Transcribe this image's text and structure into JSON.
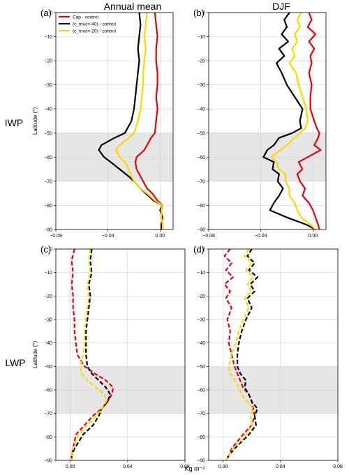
{
  "figure": {
    "column_titles": [
      "Annual mean",
      "DJF"
    ],
    "row_labels": [
      "IWP",
      "LWP"
    ],
    "shared_xlabel": "Kg m⁻²",
    "shared_ylabel": "Latitude (°)"
  },
  "colors": {
    "cap": "#e8000b",
    "c40": "#000000",
    "c20": "#ffd700",
    "shade": "#e6e6e6",
    "grid": "#d2d2d2"
  },
  "legend": [
    {
      "label": "Cap - control",
      "color": "#e8000b"
    },
    {
      "label": "(c_tnuc=-40) - control",
      "color": "#000000"
    },
    {
      "label": "(c_tnuc=-20) - control",
      "color": "#ffd700"
    }
  ],
  "chart_data": [
    {
      "panel": "(a)",
      "title": "Annual mean",
      "type": "line",
      "orientation": "y-latitude",
      "xlim": [
        -0.08,
        0.01
      ],
      "xticks": [
        -0.08,
        -0.04,
        0.0
      ],
      "xtick_labels": [
        "−0.08",
        "−0.04",
        "0.00"
      ],
      "ylim": [
        -90,
        0
      ],
      "yticks": [
        0,
        -10,
        -20,
        -30,
        -40,
        -50,
        -60,
        -70,
        -80,
        -90
      ],
      "ytick_labels": [
        "0",
        "−10",
        "−20",
        "−30",
        "−40",
        "−50",
        "−60",
        "−70",
        "−80",
        "−90"
      ],
      "shade_band": [
        -70,
        -50
      ],
      "line_style": "solid",
      "legend_loc": "upper left",
      "y": [
        0,
        -5,
        -10,
        -15,
        -20,
        -25,
        -30,
        -35,
        -40,
        -45,
        -50,
        -52,
        -55,
        -57,
        -60,
        -62,
        -65,
        -68,
        -70,
        -73,
        -75,
        -78,
        -80,
        -82,
        -85,
        -88,
        -90
      ],
      "series": [
        {
          "name": "Cap - control",
          "x": [
            -0.004,
            -0.003,
            -0.002,
            -0.003,
            -0.003,
            -0.002,
            -0.002,
            -0.003,
            -0.002,
            -0.003,
            -0.004,
            -0.007,
            -0.01,
            -0.012,
            -0.018,
            -0.019,
            -0.018,
            -0.015,
            -0.013,
            -0.01,
            -0.006,
            -0.002,
            0.002,
            0.001,
            0.001,
            0.002,
            0.002
          ]
        },
        {
          "name": "(c_tnuc=-40) - control",
          "x": [
            -0.016,
            -0.015,
            -0.016,
            -0.017,
            -0.016,
            -0.017,
            -0.018,
            -0.019,
            -0.02,
            -0.022,
            -0.027,
            -0.035,
            -0.045,
            -0.047,
            -0.043,
            -0.038,
            -0.031,
            -0.024,
            -0.02,
            -0.015,
            -0.011,
            -0.005,
            0.002,
            0.0,
            0.002,
            0.001,
            0.001
          ]
        },
        {
          "name": "(c_tnuc=-20) - control",
          "x": [
            -0.01,
            -0.011,
            -0.012,
            -0.011,
            -0.012,
            -0.013,
            -0.013,
            -0.014,
            -0.015,
            -0.017,
            -0.02,
            -0.024,
            -0.031,
            -0.034,
            -0.031,
            -0.027,
            -0.024,
            -0.022,
            -0.02,
            -0.015,
            -0.01,
            -0.004,
            0.002,
            0.001,
            0.001,
            0.002,
            0.002
          ]
        }
      ]
    },
    {
      "panel": "(b)",
      "title": "DJF",
      "type": "line",
      "orientation": "y-latitude",
      "xlim": [
        -0.08,
        0.01
      ],
      "xticks": [
        -0.08,
        -0.04,
        0.0
      ],
      "xtick_labels": [
        "−0.08",
        "−0.04",
        "0.00"
      ],
      "ylim": [
        -90,
        0
      ],
      "yticks": [
        0,
        -10,
        -20,
        -30,
        -40,
        -50,
        -60,
        -70,
        -80,
        -90
      ],
      "ytick_labels": [
        "0",
        "−10",
        "−20",
        "−30",
        "−40",
        "−50",
        "−60",
        "−70",
        "−80",
        "−90"
      ],
      "shade_band": [
        -70,
        -50
      ],
      "line_style": "solid",
      "y": [
        0,
        -3,
        -6,
        -9,
        -12,
        -15,
        -18,
        -21,
        -25,
        -30,
        -35,
        -40,
        -45,
        -48,
        -50,
        -52,
        -55,
        -57,
        -60,
        -62,
        -65,
        -67,
        -70,
        -73,
        -76,
        -79,
        -82,
        -85,
        -88,
        -90
      ],
      "series": [
        {
          "name": "Cap - control",
          "x": [
            -0.003,
            -0.001,
            -0.004,
            0.002,
            -0.003,
            0.001,
            -0.002,
            -0.001,
            -0.003,
            -0.001,
            -0.002,
            -0.002,
            0.001,
            0.003,
            0.005,
            0.004,
            0.001,
            0.006,
            -0.004,
            -0.011,
            -0.008,
            -0.012,
            -0.01,
            -0.006,
            -0.008,
            -0.003,
            0.0,
            0.002,
            0.004,
            0.005
          ]
        },
        {
          "name": "(c_tnuc=-40) - control",
          "x": [
            -0.018,
            -0.022,
            -0.02,
            -0.024,
            -0.019,
            -0.026,
            -0.022,
            -0.028,
            -0.024,
            -0.02,
            -0.014,
            -0.008,
            -0.01,
            -0.009,
            -0.016,
            -0.026,
            -0.03,
            -0.035,
            -0.038,
            -0.03,
            -0.031,
            -0.026,
            -0.027,
            -0.023,
            -0.026,
            -0.03,
            -0.033,
            -0.02,
            -0.005,
            0.002
          ]
        },
        {
          "name": "(c_tnuc=-20) - control",
          "x": [
            -0.009,
            -0.012,
            -0.01,
            -0.014,
            -0.012,
            -0.016,
            -0.014,
            -0.018,
            -0.013,
            -0.011,
            -0.008,
            -0.005,
            -0.004,
            -0.006,
            -0.01,
            -0.014,
            -0.02,
            -0.025,
            -0.032,
            -0.028,
            -0.026,
            -0.021,
            -0.021,
            -0.018,
            -0.018,
            -0.014,
            -0.012,
            -0.009,
            -0.002,
            0.002
          ]
        }
      ]
    },
    {
      "panel": "(c)",
      "type": "line",
      "orientation": "y-latitude",
      "xlim": [
        -0.01,
        0.08
      ],
      "xticks": [
        0.0,
        0.04,
        0.08
      ],
      "xtick_labels": [
        "0.00",
        "0.04",
        "0.08"
      ],
      "ylim": [
        -90,
        0
      ],
      "yticks": [
        0,
        -10,
        -20,
        -30,
        -40,
        -50,
        -60,
        -70,
        -80,
        -90
      ],
      "ytick_labels": [
        "0",
        "−10",
        "−20",
        "−30",
        "−40",
        "−50",
        "−60",
        "−70",
        "−80",
        "−90"
      ],
      "shade_band": [
        -70,
        -50
      ],
      "line_style": "dashed",
      "y": [
        0,
        -5,
        -10,
        -15,
        -20,
        -25,
        -30,
        -35,
        -40,
        -45,
        -50,
        -53,
        -56,
        -59,
        -62,
        -65,
        -68,
        -71,
        -75,
        -79,
        -82,
        -85,
        -88,
        -90
      ],
      "series": [
        {
          "name": "Cap - control",
          "x": [
            0.003,
            0.001,
            0.002,
            0.001,
            0.002,
            0.002,
            0.003,
            0.003,
            0.004,
            0.005,
            0.01,
            0.017,
            0.025,
            0.03,
            0.029,
            0.026,
            0.022,
            0.016,
            0.01,
            0.004,
            0.003,
            0.002,
            0.001,
            0.001
          ]
        },
        {
          "name": "(c_tnuc=-40) - control",
          "x": [
            0.015,
            0.014,
            0.015,
            0.013,
            0.014,
            0.013,
            0.012,
            0.011,
            0.011,
            0.011,
            0.012,
            0.015,
            0.02,
            0.025,
            0.028,
            0.026,
            0.022,
            0.02,
            0.016,
            0.009,
            0.006,
            0.003,
            0.001,
            0.001
          ]
        },
        {
          "name": "(c_tnuc=-20) - control",
          "x": [
            0.014,
            0.013,
            0.014,
            0.012,
            0.013,
            0.012,
            0.011,
            0.01,
            0.01,
            0.009,
            0.007,
            0.008,
            0.012,
            0.018,
            0.024,
            0.025,
            0.022,
            0.018,
            0.012,
            0.006,
            0.004,
            0.002,
            0.001,
            0.001
          ]
        }
      ]
    },
    {
      "panel": "(d)",
      "type": "line",
      "orientation": "y-latitude",
      "xlim": [
        -0.01,
        0.08
      ],
      "xticks": [
        0.0,
        0.04,
        0.08
      ],
      "xtick_labels": [
        "0.00",
        "0.04",
        "0.08"
      ],
      "ylim": [
        -90,
        0
      ],
      "yticks": [
        0,
        -10,
        -20,
        -30,
        -40,
        -50,
        -60,
        -70,
        -80,
        -90
      ],
      "ytick_labels": [
        "0",
        "−10",
        "−20",
        "−30",
        "−40",
        "−50",
        "−60",
        "−70",
        "−80",
        "−90"
      ],
      "shade_band": [
        -70,
        -50
      ],
      "line_style": "dashed",
      "y": [
        0,
        -3,
        -6,
        -9,
        -12,
        -15,
        -18,
        -21,
        -25,
        -30,
        -35,
        -40,
        -45,
        -50,
        -53,
        -56,
        -59,
        -62,
        -65,
        -68,
        -71,
        -75,
        -79,
        -82,
        -85,
        -88,
        -90
      ],
      "series": [
        {
          "name": "Cap - control",
          "x": [
            0.005,
            0.001,
            0.006,
            0.002,
            0.007,
            0.001,
            0.005,
            0.002,
            0.006,
            0.003,
            0.005,
            0.004,
            0.006,
            0.008,
            0.01,
            0.012,
            0.014,
            0.018,
            0.02,
            0.021,
            0.022,
            0.02,
            0.014,
            0.01,
            0.006,
            0.004,
            0.002
          ]
        },
        {
          "name": "(c_tnuc=-40) - control",
          "x": [
            0.02,
            0.017,
            0.022,
            0.018,
            0.024,
            0.019,
            0.022,
            0.017,
            0.02,
            0.016,
            0.013,
            0.011,
            0.01,
            0.01,
            0.012,
            0.016,
            0.015,
            0.018,
            0.02,
            0.024,
            0.022,
            0.023,
            0.018,
            0.013,
            0.008,
            0.004,
            0.002
          ]
        },
        {
          "name": "(c_tnuc=-20) - control",
          "x": [
            0.018,
            0.015,
            0.02,
            0.016,
            0.021,
            0.017,
            0.02,
            0.015,
            0.018,
            0.014,
            0.011,
            0.009,
            0.006,
            0.004,
            0.005,
            0.008,
            0.011,
            0.013,
            0.017,
            0.021,
            0.019,
            0.02,
            0.016,
            0.012,
            0.007,
            0.004,
            0.002
          ]
        }
      ]
    }
  ]
}
